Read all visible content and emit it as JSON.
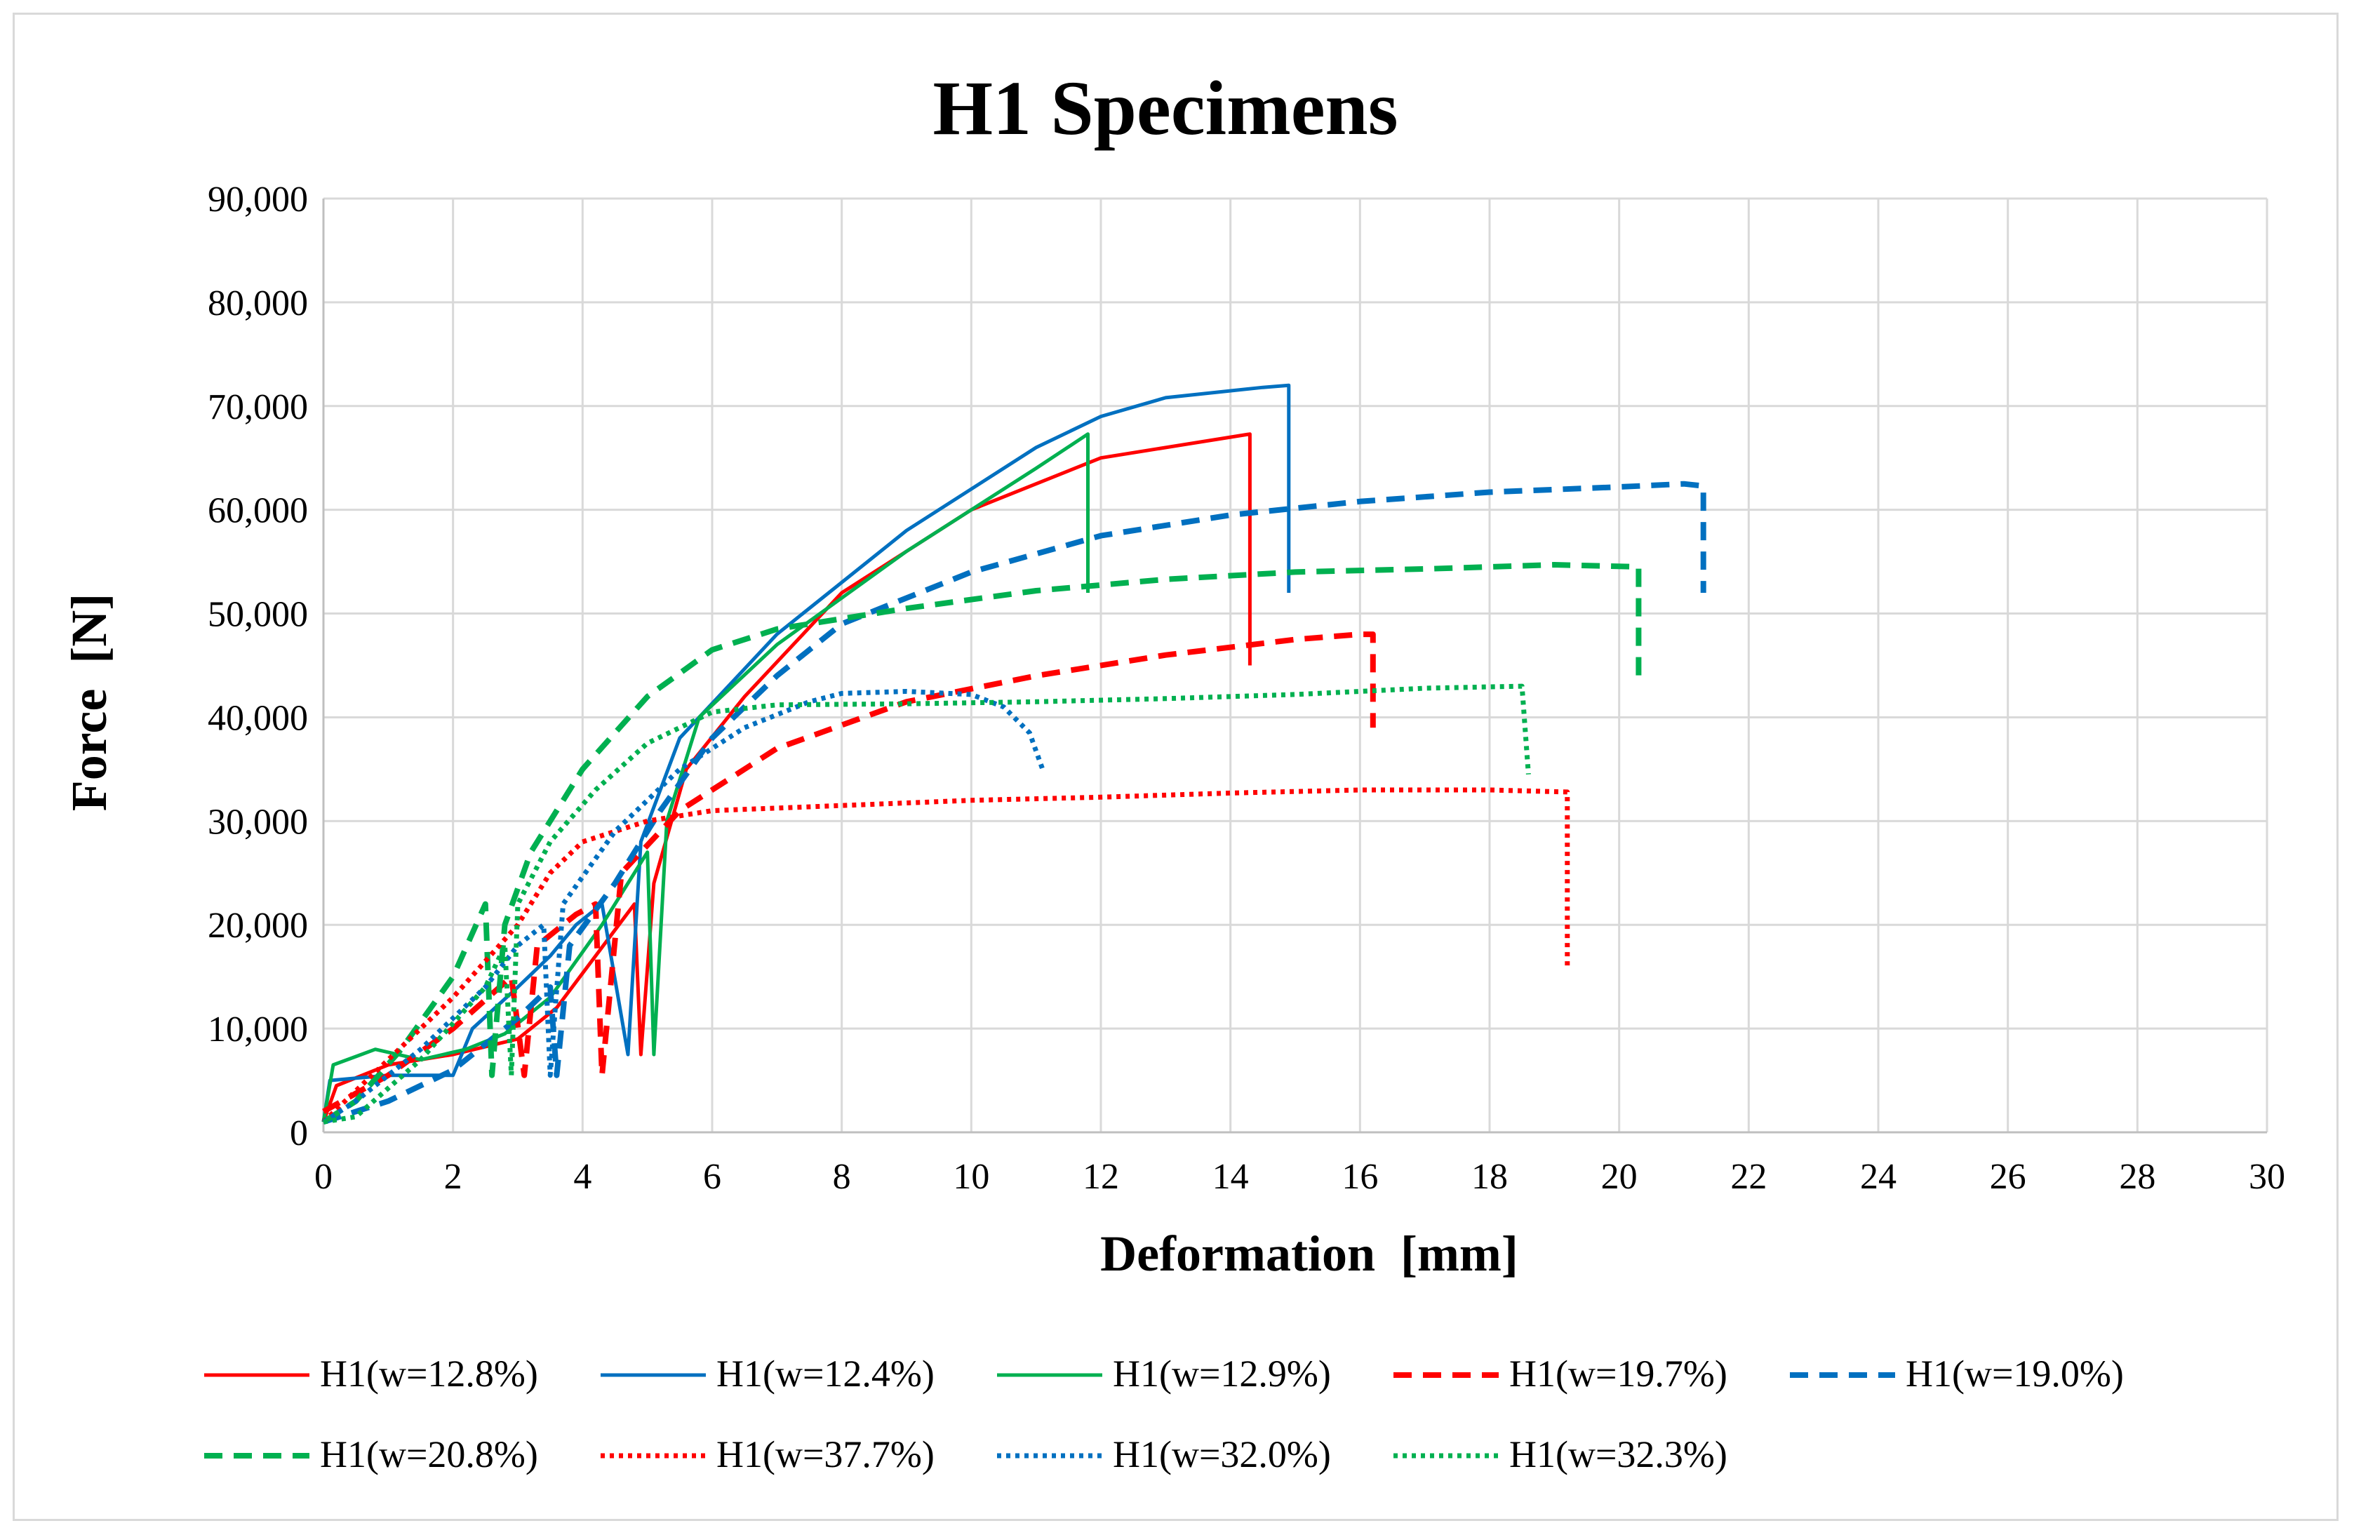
{
  "chart_data": {
    "type": "line",
    "title": "H1 Specimens",
    "xlabel": "Deformation  [mm]",
    "ylabel": "Force  [N]",
    "xlim": [
      0,
      30
    ],
    "ylim": [
      0,
      90000
    ],
    "x_ticks": [
      0,
      2,
      4,
      6,
      8,
      10,
      12,
      14,
      16,
      18,
      20,
      22,
      24,
      26,
      28,
      30
    ],
    "y_ticks": [
      0,
      10000,
      20000,
      30000,
      40000,
      50000,
      60000,
      70000,
      80000,
      90000
    ],
    "x_tick_labels": [
      "0",
      "2",
      "4",
      "6",
      "8",
      "10",
      "12",
      "14",
      "16",
      "18",
      "20",
      "22",
      "24",
      "26",
      "28",
      "30"
    ],
    "y_tick_labels": [
      "0",
      "10,000",
      "20,000",
      "30,000",
      "40,000",
      "50,000",
      "60,000",
      "70,000",
      "80,000",
      "90,000"
    ],
    "grid": true,
    "legend_position": "bottom",
    "series": [
      {
        "name": "H1(w=12.8%)",
        "color": "#ff0000",
        "dash": "solid",
        "points": [
          [
            0,
            1000
          ],
          [
            0.2,
            4500
          ],
          [
            1,
            6500
          ],
          [
            2,
            7500
          ],
          [
            3,
            9000
          ],
          [
            3.6,
            12000
          ],
          [
            4.2,
            17000
          ],
          [
            4.8,
            22000
          ],
          [
            4.9,
            7500
          ],
          [
            5.1,
            24000
          ],
          [
            5.6,
            35000
          ],
          [
            6.5,
            42000
          ],
          [
            8,
            52000
          ],
          [
            10,
            60000
          ],
          [
            12,
            65000
          ],
          [
            14,
            67000
          ],
          [
            14.3,
            67300
          ],
          [
            14.3,
            45000
          ]
        ]
      },
      {
        "name": "H1(w=12.4%)",
        "color": "#0070c0",
        "dash": "solid",
        "points": [
          [
            0,
            1000
          ],
          [
            0.1,
            5000
          ],
          [
            1,
            5500
          ],
          [
            2,
            5500
          ],
          [
            2.3,
            10000
          ],
          [
            3,
            14000
          ],
          [
            3.5,
            17000
          ],
          [
            3.9,
            20000
          ],
          [
            4.3,
            22000
          ],
          [
            4.7,
            7500
          ],
          [
            4.9,
            28000
          ],
          [
            5.5,
            38000
          ],
          [
            7,
            48000
          ],
          [
            9,
            58000
          ],
          [
            11,
            66000
          ],
          [
            12,
            69000
          ],
          [
            13,
            70800
          ],
          [
            14.5,
            71800
          ],
          [
            14.9,
            72000
          ],
          [
            14.9,
            52000
          ]
        ]
      },
      {
        "name": "H1(w=12.9%)",
        "color": "#00b050",
        "dash": "solid",
        "points": [
          [
            0,
            1000
          ],
          [
            0.15,
            6500
          ],
          [
            0.8,
            8000
          ],
          [
            1.5,
            7000
          ],
          [
            2.2,
            8000
          ],
          [
            2.8,
            9500
          ],
          [
            3.5,
            13000
          ],
          [
            4.3,
            20000
          ],
          [
            5.0,
            27000
          ],
          [
            5.1,
            7500
          ],
          [
            5.3,
            30000
          ],
          [
            5.8,
            40000
          ],
          [
            7,
            47000
          ],
          [
            9,
            56000
          ],
          [
            11,
            64000
          ],
          [
            11.8,
            67300
          ],
          [
            11.8,
            52000
          ]
        ]
      },
      {
        "name": "H1(w=19.7%)",
        "color": "#ff0000",
        "dash": "dash",
        "points": [
          [
            0,
            2000
          ],
          [
            1,
            5500
          ],
          [
            2,
            10000
          ],
          [
            2.9,
            15000
          ],
          [
            3.1,
            5500
          ],
          [
            3.3,
            18000
          ],
          [
            3.9,
            21000
          ],
          [
            4.2,
            22000
          ],
          [
            4.3,
            5500
          ],
          [
            4.6,
            25000
          ],
          [
            5.5,
            31000
          ],
          [
            7,
            37000
          ],
          [
            9,
            41500
          ],
          [
            11,
            44000
          ],
          [
            13,
            46000
          ],
          [
            15,
            47500
          ],
          [
            16,
            48000
          ],
          [
            16.2,
            48000
          ],
          [
            16.2,
            39000
          ]
        ]
      },
      {
        "name": "H1(w=19.0%)",
        "color": "#0070c0",
        "dash": "dash",
        "points": [
          [
            0,
            1000
          ],
          [
            1,
            3000
          ],
          [
            2,
            6000
          ],
          [
            3,
            11000
          ],
          [
            3.5,
            14000
          ],
          [
            3.6,
            5500
          ],
          [
            3.8,
            18000
          ],
          [
            4.5,
            24000
          ],
          [
            5.2,
            31000
          ],
          [
            6,
            38000
          ],
          [
            7,
            44000
          ],
          [
            8,
            49000
          ],
          [
            10,
            54000
          ],
          [
            12,
            57500
          ],
          [
            14,
            59500
          ],
          [
            16,
            60800
          ],
          [
            18,
            61700
          ],
          [
            20,
            62200
          ],
          [
            21,
            62500
          ],
          [
            21.3,
            62300
          ],
          [
            21.3,
            52000
          ]
        ]
      },
      {
        "name": "H1(w=20.8%)",
        "color": "#00b050",
        "dash": "dash",
        "points": [
          [
            0,
            1000
          ],
          [
            0.5,
            3000
          ],
          [
            1.2,
            8000
          ],
          [
            2,
            15000
          ],
          [
            2.5,
            22000
          ],
          [
            2.6,
            5500
          ],
          [
            2.8,
            20000
          ],
          [
            3.2,
            27000
          ],
          [
            4,
            35000
          ],
          [
            5,
            42000
          ],
          [
            6,
            46500
          ],
          [
            7,
            48500
          ],
          [
            9,
            50500
          ],
          [
            11,
            52200
          ],
          [
            13,
            53300
          ],
          [
            15,
            54000
          ],
          [
            17,
            54300
          ],
          [
            19,
            54700
          ],
          [
            20.3,
            54500
          ],
          [
            20.3,
            43000
          ]
        ]
      },
      {
        "name": "H1(w=37.7%)",
        "color": "#ff0000",
        "dash": "dot",
        "points": [
          [
            0,
            1000
          ],
          [
            0.5,
            4000
          ],
          [
            1,
            7000
          ],
          [
            2,
            13000
          ],
          [
            3,
            20000
          ],
          [
            3.5,
            25000
          ],
          [
            4,
            28000
          ],
          [
            5,
            30000
          ],
          [
            6,
            31000
          ],
          [
            8,
            31500
          ],
          [
            10,
            32000
          ],
          [
            12,
            32300
          ],
          [
            14,
            32700
          ],
          [
            16,
            33000
          ],
          [
            18,
            33000
          ],
          [
            19.2,
            32800
          ],
          [
            19.2,
            16000
          ]
        ]
      },
      {
        "name": "H1(w=32.0%)",
        "color": "#0070c0",
        "dash": "dot",
        "points": [
          [
            0,
            1000
          ],
          [
            0.5,
            3000
          ],
          [
            1.5,
            8000
          ],
          [
            2.5,
            14000
          ],
          [
            3,
            18000
          ],
          [
            3.4,
            20000
          ],
          [
            3.5,
            5500
          ],
          [
            3.7,
            22000
          ],
          [
            4.5,
            29000
          ],
          [
            5.5,
            35000
          ],
          [
            6.5,
            39000
          ],
          [
            7.5,
            41500
          ],
          [
            8,
            42300
          ],
          [
            9,
            42500
          ],
          [
            10,
            42200
          ],
          [
            10.5,
            41000
          ],
          [
            10.9,
            38500
          ],
          [
            11.1,
            35000
          ]
        ]
      },
      {
        "name": "H1(w=32.3%)",
        "color": "#00b050",
        "dash": "dot",
        "points": [
          [
            0,
            1000
          ],
          [
            0.5,
            1500
          ],
          [
            1.5,
            7000
          ],
          [
            2.5,
            14000
          ],
          [
            2.8,
            18000
          ],
          [
            2.9,
            5500
          ],
          [
            3.0,
            22000
          ],
          [
            3.5,
            28000
          ],
          [
            4.2,
            33000
          ],
          [
            5,
            37500
          ],
          [
            6,
            40500
          ],
          [
            7,
            41200
          ],
          [
            9,
            41300
          ],
          [
            11,
            41500
          ],
          [
            13,
            41800
          ],
          [
            15,
            42200
          ],
          [
            17,
            42800
          ],
          [
            18.5,
            43000
          ],
          [
            18.6,
            34500
          ]
        ]
      }
    ]
  }
}
